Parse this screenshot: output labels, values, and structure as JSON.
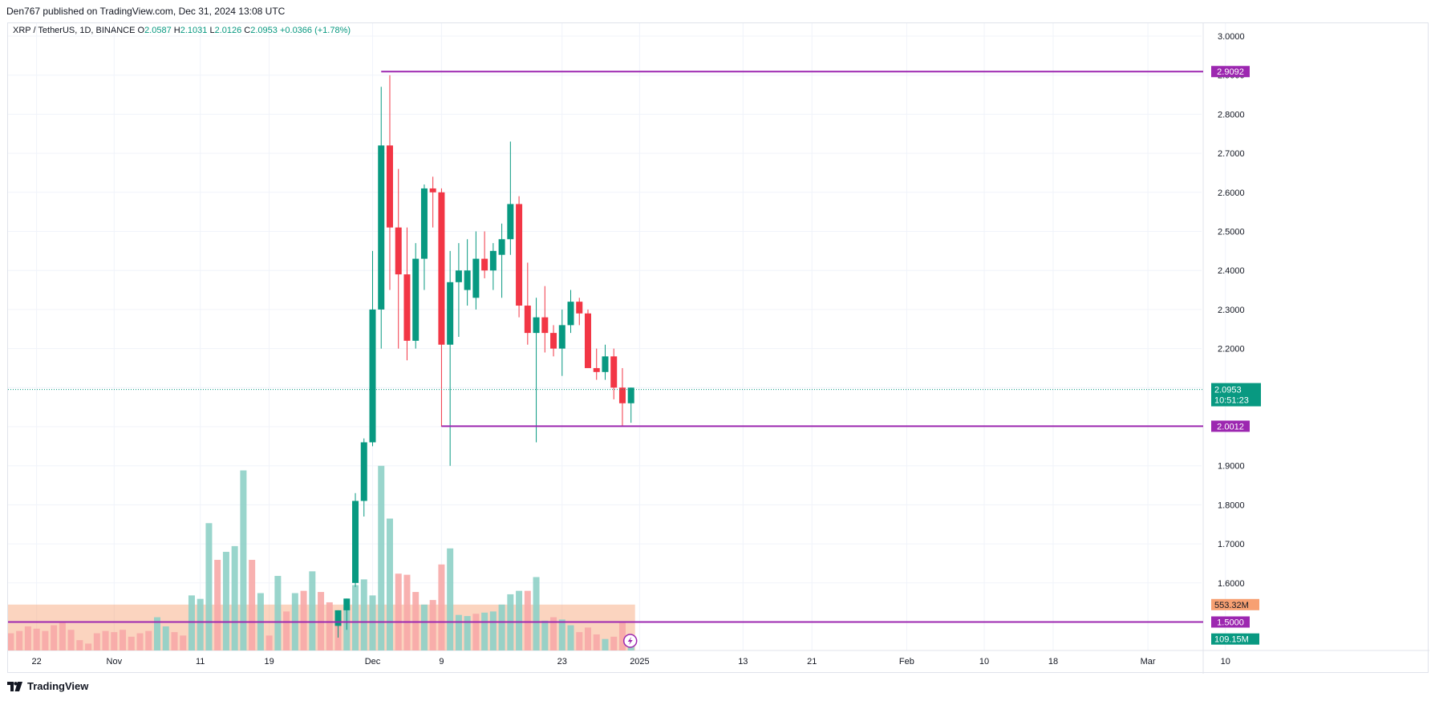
{
  "header": {
    "text": "Den767 published on TradingView.com, Dec 31, 2024 13:08 UTC"
  },
  "footer": {
    "brand": "TradingView",
    "logo_icon": "tradingview-logo-icon"
  },
  "colors": {
    "up": "#089981",
    "down": "#f23645",
    "level": "#9c27b0",
    "grid": "#f0f3fa",
    "axis_text": "#131722",
    "volume_up": "#8ed0c6",
    "volume_down": "#f7a9a7",
    "volume_profile": "#f7a072"
  },
  "chart_data": {
    "type": "candlestick",
    "symbol": "XRP / TetherUS, 1D, BINANCE",
    "ohlc_legend": {
      "o_label": "O",
      "o": "2.0587",
      "h_label": "H",
      "h": "2.1031",
      "l_label": "L",
      "l": "2.0126",
      "c_label": "C",
      "c": "2.0953",
      "change": "+0.0366 (+1.78%)"
    },
    "ylim": [
      1.45,
      3.035
    ],
    "y_ticks": [
      "3.0000",
      "2.9000",
      "2.8000",
      "2.7000",
      "2.6000",
      "2.5000",
      "2.4000",
      "2.3000",
      "2.2000",
      "2.1000",
      "2.0000",
      "1.9000",
      "1.8000",
      "1.7000",
      "1.6000",
      "1.5000"
    ],
    "x_ticks": [
      {
        "label": "22",
        "day": -39
      },
      {
        "label": "Nov",
        "day": -30
      },
      {
        "label": "11",
        "day": -20
      },
      {
        "label": "19",
        "day": -12
      },
      {
        "label": "Dec",
        "day": 0
      },
      {
        "label": "9",
        "day": 8
      },
      {
        "label": "23",
        "day": 22
      },
      {
        "label": "2025",
        "day": 31
      },
      {
        "label": "13",
        "day": 43
      },
      {
        "label": "21",
        "day": 51
      },
      {
        "label": "Feb",
        "day": 62
      },
      {
        "label": "10",
        "day": 71
      },
      {
        "label": "18",
        "day": 79
      },
      {
        "label": "Mar",
        "day": 90
      },
      {
        "label": "10",
        "day": 99
      }
    ],
    "x_day_range": [
      -46,
      105
    ],
    "candles": [
      {
        "day": -4,
        "o": 1.49,
        "h": 1.53,
        "l": 1.46,
        "c": 1.53
      },
      {
        "day": -3,
        "o": 1.53,
        "h": 1.56,
        "l": 1.48,
        "c": 1.56
      },
      {
        "day": -2,
        "o": 1.6,
        "h": 1.83,
        "l": 1.59,
        "c": 1.81
      },
      {
        "day": -1,
        "o": 1.81,
        "h": 1.97,
        "l": 1.77,
        "c": 1.96
      },
      {
        "day": 0,
        "o": 1.96,
        "h": 2.45,
        "l": 1.95,
        "c": 2.3
      },
      {
        "day": 1,
        "o": 2.3,
        "h": 2.87,
        "l": 2.2,
        "c": 2.72
      },
      {
        "day": 2,
        "o": 2.72,
        "h": 2.9,
        "l": 2.35,
        "c": 2.51
      },
      {
        "day": 3,
        "o": 2.51,
        "h": 2.66,
        "l": 2.2,
        "c": 2.39
      },
      {
        "day": 4,
        "o": 2.39,
        "h": 2.51,
        "l": 2.17,
        "c": 2.22
      },
      {
        "day": 5,
        "o": 2.22,
        "h": 2.47,
        "l": 2.2,
        "c": 2.43
      },
      {
        "day": 6,
        "o": 2.43,
        "h": 2.62,
        "l": 2.35,
        "c": 2.61
      },
      {
        "day": 7,
        "o": 2.61,
        "h": 2.64,
        "l": 2.51,
        "c": 2.6
      },
      {
        "day": 8,
        "o": 2.6,
        "h": 2.61,
        "l": 2.0,
        "c": 2.21
      },
      {
        "day": 9,
        "o": 2.21,
        "h": 2.45,
        "l": 1.9,
        "c": 2.37
      },
      {
        "day": 10,
        "o": 2.37,
        "h": 2.47,
        "l": 2.23,
        "c": 2.4
      },
      {
        "day": 11,
        "o": 2.35,
        "h": 2.48,
        "l": 2.31,
        "c": 2.4
      },
      {
        "day": 12,
        "o": 2.33,
        "h": 2.5,
        "l": 2.3,
        "c": 2.43
      },
      {
        "day": 13,
        "o": 2.43,
        "h": 2.5,
        "l": 2.38,
        "c": 2.4
      },
      {
        "day": 14,
        "o": 2.4,
        "h": 2.47,
        "l": 2.35,
        "c": 2.45
      },
      {
        "day": 15,
        "o": 2.44,
        "h": 2.52,
        "l": 2.33,
        "c": 2.48
      },
      {
        "day": 16,
        "o": 2.48,
        "h": 2.73,
        "l": 2.44,
        "c": 2.57
      },
      {
        "day": 17,
        "o": 2.57,
        "h": 2.59,
        "l": 2.28,
        "c": 2.31
      },
      {
        "day": 18,
        "o": 2.31,
        "h": 2.42,
        "l": 2.21,
        "c": 2.24
      },
      {
        "day": 19,
        "o": 2.24,
        "h": 2.33,
        "l": 1.96,
        "c": 2.28
      },
      {
        "day": 20,
        "o": 2.28,
        "h": 2.36,
        "l": 2.19,
        "c": 2.24
      },
      {
        "day": 21,
        "o": 2.24,
        "h": 2.26,
        "l": 2.18,
        "c": 2.2
      },
      {
        "day": 22,
        "o": 2.2,
        "h": 2.3,
        "l": 2.13,
        "c": 2.26
      },
      {
        "day": 23,
        "o": 2.26,
        "h": 2.35,
        "l": 2.24,
        "c": 2.32
      },
      {
        "day": 24,
        "o": 2.32,
        "h": 2.33,
        "l": 2.26,
        "c": 2.29
      },
      {
        "day": 25,
        "o": 2.29,
        "h": 2.3,
        "l": 2.16,
        "c": 2.15
      },
      {
        "day": 26,
        "o": 2.15,
        "h": 2.2,
        "l": 2.12,
        "c": 2.14
      },
      {
        "day": 27,
        "o": 2.14,
        "h": 2.21,
        "l": 2.12,
        "c": 2.18
      },
      {
        "day": 28,
        "o": 2.18,
        "h": 2.2,
        "l": 2.07,
        "c": 2.1
      },
      {
        "day": 29,
        "o": 2.1,
        "h": 2.15,
        "l": 2.0,
        "c": 2.06
      },
      {
        "day": 30,
        "o": 2.06,
        "h": 2.1,
        "l": 2.01,
        "c": 2.1
      }
    ],
    "volumes": [
      {
        "day": -45,
        "v": 0.09,
        "up": false
      },
      {
        "day": -44,
        "v": 0.18,
        "up": false
      },
      {
        "day": -43,
        "v": 0.24,
        "up": false
      },
      {
        "day": -42,
        "v": 0.15,
        "up": false
      },
      {
        "day": -41,
        "v": 0.17,
        "up": false
      },
      {
        "day": -40,
        "v": 0.21,
        "up": false
      },
      {
        "day": -39,
        "v": 0.19,
        "up": false
      },
      {
        "day": -38,
        "v": 0.17,
        "up": false
      },
      {
        "day": -37,
        "v": 0.22,
        "up": false
      },
      {
        "day": -36,
        "v": 0.24,
        "up": false
      },
      {
        "day": -35,
        "v": 0.18,
        "up": false
      },
      {
        "day": -34,
        "v": 0.09,
        "up": false
      },
      {
        "day": -33,
        "v": 0.06,
        "up": false
      },
      {
        "day": -32,
        "v": 0.15,
        "up": false
      },
      {
        "day": -31,
        "v": 0.17,
        "up": false
      },
      {
        "day": -30,
        "v": 0.16,
        "up": false
      },
      {
        "day": -29,
        "v": 0.18,
        "up": false
      },
      {
        "day": -28,
        "v": 0.12,
        "up": false
      },
      {
        "day": -27,
        "v": 0.15,
        "up": false
      },
      {
        "day": -26,
        "v": 0.17,
        "up": false
      },
      {
        "day": -25,
        "v": 0.29,
        "up": true
      },
      {
        "day": -24,
        "v": 0.21,
        "up": true
      },
      {
        "day": -23,
        "v": 0.16,
        "up": false
      },
      {
        "day": -22,
        "v": 0.13,
        "up": false
      },
      {
        "day": -21,
        "v": 0.48,
        "up": true
      },
      {
        "day": -20,
        "v": 0.45,
        "up": true
      },
      {
        "day": -19,
        "v": 1.11,
        "up": true
      },
      {
        "day": -18,
        "v": 0.79,
        "up": false
      },
      {
        "day": -17,
        "v": 0.86,
        "up": true
      },
      {
        "day": -16,
        "v": 0.91,
        "up": true
      },
      {
        "day": -15,
        "v": 1.57,
        "up": true
      },
      {
        "day": -14,
        "v": 0.79,
        "up": false
      },
      {
        "day": -13,
        "v": 0.5,
        "up": true
      },
      {
        "day": -12,
        "v": 0.13,
        "up": false
      },
      {
        "day": -11,
        "v": 0.65,
        "up": true
      },
      {
        "day": -10,
        "v": 0.34,
        "up": false
      },
      {
        "day": -9,
        "v": 0.5,
        "up": true
      },
      {
        "day": -8,
        "v": 0.52,
        "up": false
      },
      {
        "day": -7,
        "v": 0.69,
        "up": true
      },
      {
        "day": -6,
        "v": 0.51,
        "up": false
      },
      {
        "day": -5,
        "v": 0.42,
        "up": false
      },
      {
        "day": -4,
        "v": 0.3,
        "up": false
      },
      {
        "day": -3,
        "v": 0.38,
        "up": true
      },
      {
        "day": -2,
        "v": 0.57,
        "up": true
      },
      {
        "day": -1,
        "v": 0.62,
        "up": true
      },
      {
        "day": 0,
        "v": 0.48,
        "up": true
      },
      {
        "day": 1,
        "v": 1.61,
        "up": true
      },
      {
        "day": 2,
        "v": 1.15,
        "up": true
      },
      {
        "day": 3,
        "v": 0.67,
        "up": false
      },
      {
        "day": 4,
        "v": 0.66,
        "up": false
      },
      {
        "day": 5,
        "v": 0.51,
        "up": false
      },
      {
        "day": 6,
        "v": 0.4,
        "up": true
      },
      {
        "day": 7,
        "v": 0.44,
        "up": false
      },
      {
        "day": 8,
        "v": 0.75,
        "up": false
      },
      {
        "day": 9,
        "v": 0.89,
        "up": true
      },
      {
        "day": 10,
        "v": 0.31,
        "up": true
      },
      {
        "day": 11,
        "v": 0.3,
        "up": true
      },
      {
        "day": 12,
        "v": 0.32,
        "up": false
      },
      {
        "day": 13,
        "v": 0.33,
        "up": true
      },
      {
        "day": 14,
        "v": 0.34,
        "up": true
      },
      {
        "day": 15,
        "v": 0.4,
        "up": true
      },
      {
        "day": 16,
        "v": 0.49,
        "up": true
      },
      {
        "day": 17,
        "v": 0.52,
        "up": true
      },
      {
        "day": 18,
        "v": 0.52,
        "up": false
      },
      {
        "day": 19,
        "v": 0.64,
        "up": true
      },
      {
        "day": 20,
        "v": 0.26,
        "up": true
      },
      {
        "day": 21,
        "v": 0.29,
        "up": false
      },
      {
        "day": 22,
        "v": 0.27,
        "up": true
      },
      {
        "day": 23,
        "v": 0.22,
        "up": true
      },
      {
        "day": 24,
        "v": 0.16,
        "up": false
      },
      {
        "day": 25,
        "v": 0.2,
        "up": false
      },
      {
        "day": 26,
        "v": 0.14,
        "up": false
      },
      {
        "day": 27,
        "v": 0.1,
        "up": true
      },
      {
        "day": 28,
        "v": 0.12,
        "up": false
      },
      {
        "day": 29,
        "v": 0.24,
        "up": false
      },
      {
        "day": 30,
        "v": 0.11,
        "up": true
      }
    ],
    "volume_profile": {
      "day_start": -46,
      "day_end": 30,
      "level": 0.4
    },
    "levels": [
      {
        "price": 2.9092,
        "label": "2.9092",
        "day_start": 1
      },
      {
        "price": 2.0012,
        "label": "2.0012",
        "day_start": 8
      },
      {
        "price": 1.5,
        "label": "1.5000",
        "day_start": -46
      }
    ],
    "last_price": {
      "price": 2.0953,
      "label": "2.0953",
      "countdown": "10:51:23"
    },
    "volume_badges": [
      {
        "label": "553.32M",
        "color": "#f7a072",
        "level": 0.4
      },
      {
        "label": "109.15M",
        "color": "#089981",
        "level": 0.1
      }
    ],
    "lightning_icon": {
      "name": "lightning-icon",
      "day": 30
    }
  }
}
